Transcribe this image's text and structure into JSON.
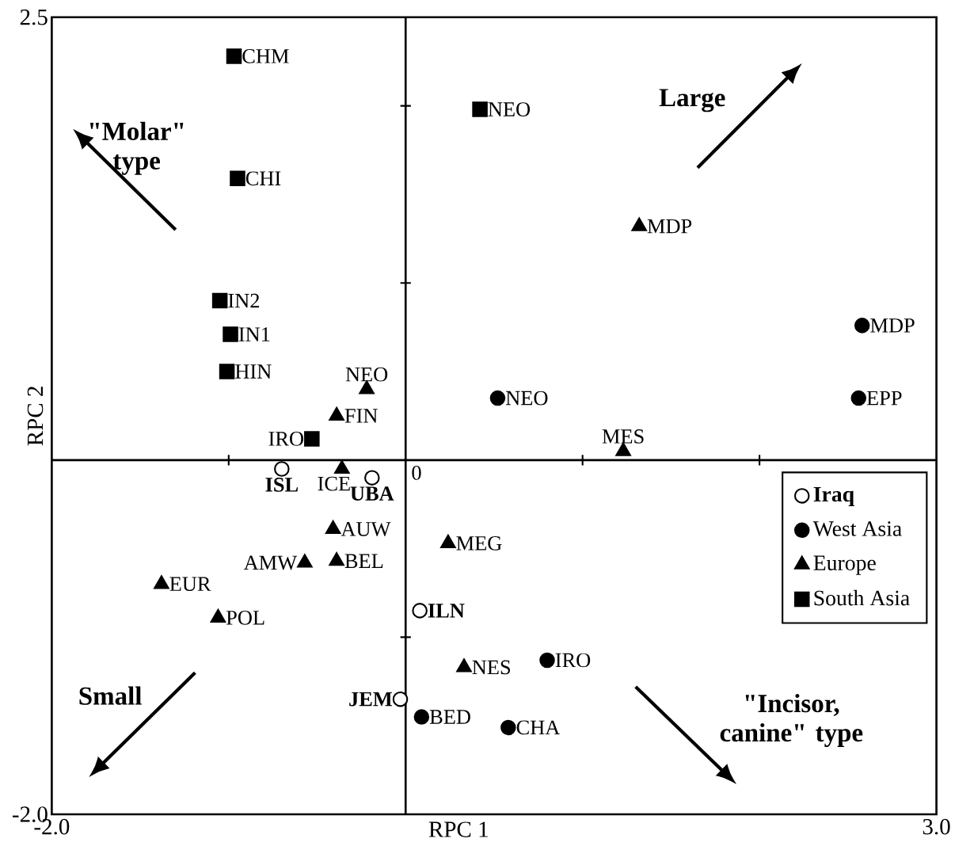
{
  "chart_data": {
    "type": "scatter",
    "xlabel": "RPC 1",
    "ylabel": "RPC 2",
    "xlim": [
      -2,
      3
    ],
    "ylim": [
      -2,
      2.5
    ],
    "xticks": [
      {
        "value": -2,
        "label": "-2.0"
      },
      {
        "value": -1,
        "label": null
      },
      {
        "value": 1,
        "label": null
      },
      {
        "value": 2,
        "label": null
      },
      {
        "value": 3,
        "label": "3.0"
      }
    ],
    "yticks": [
      {
        "value": -2,
        "label": "-2.0"
      },
      {
        "value": -1,
        "label": null
      },
      {
        "value": 1,
        "label": null
      },
      {
        "value": 2,
        "label": null
      },
      {
        "value": 2.5,
        "label": "2.5"
      }
    ],
    "legend": "right",
    "grid": false,
    "series": [
      {
        "name": "**Iraq**",
        "color": "#ffffff",
        "marker": "circle",
        "x": [
          -0.7,
          -0.19,
          0.08,
          -0.03
        ],
        "values": [
          -0.05,
          -0.1,
          -0.85,
          -1.35
        ]
      },
      {
        "name": "West Asia",
        "color": "#000000",
        "marker": "circle",
        "x": [
          2.58,
          0.52,
          2.56,
          0.8,
          0.09,
          0.58
        ],
        "values": [
          0.76,
          0.35,
          0.35,
          -1.13,
          -1.45,
          -1.51
        ]
      },
      {
        "name": "Europe",
        "color": "#000000",
        "marker": "triangle",
        "x": [
          1.32,
          -0.22,
          -0.39,
          1.23,
          -0.36,
          -0.41,
          -0.57,
          -0.39,
          0.24,
          -1.38,
          -1.06,
          0.33
        ],
        "values": [
          1.32,
          0.4,
          0.25,
          0.05,
          -0.05,
          -0.39,
          -0.58,
          -0.57,
          -0.47,
          -0.7,
          -0.89,
          -1.17
        ]
      },
      {
        "name": "South Asia",
        "color": "#000000",
        "marker": "square",
        "x": [
          -0.97,
          0.42,
          -0.95,
          -1.05,
          -0.99,
          -1.01,
          -0.53
        ],
        "values": [
          2.28,
          1.98,
          1.59,
          0.9,
          0.71,
          0.5,
          0.12
        ]
      }
    ],
    "annotations": [
      "Large",
      "\"Molar\" type",
      "Small",
      "\"Incisor, canine\" type",
      "0",
      {
        "text": "**ISL**",
        "x": -0.7,
        "y": -0.05
      },
      {
        "text": "**UBA**",
        "x": -0.19,
        "y": -0.1
      },
      {
        "text": "**ILN**",
        "x": 0.08,
        "y": -0.85
      },
      {
        "text": "**JEM**",
        "x": -0.03,
        "y": -1.35
      },
      {
        "text": "MDP",
        "x": 2.58,
        "y": 0.76
      },
      {
        "text": "NEO",
        "x": 0.52,
        "y": 0.35
      },
      {
        "text": "EPP",
        "x": 2.56,
        "y": 0.35
      },
      {
        "text": "IRO",
        "x": 0.8,
        "y": -1.13
      },
      {
        "text": "BED",
        "x": 0.09,
        "y": -1.45
      },
      {
        "text": "CHA",
        "x": 0.58,
        "y": -1.51
      },
      {
        "text": "MDP",
        "x": 1.32,
        "y": 1.32
      },
      {
        "text": "NEO",
        "x": -0.22,
        "y": 0.4
      },
      {
        "text": "FIN",
        "x": -0.39,
        "y": 0.25
      },
      {
        "text": "MES",
        "x": 1.23,
        "y": 0.05
      },
      {
        "text": "ICE",
        "x": -0.36,
        "y": -0.05
      },
      {
        "text": "AUW",
        "x": -0.41,
        "y": -0.39
      },
      {
        "text": "AMW",
        "x": -0.57,
        "y": -0.58
      },
      {
        "text": "BEL",
        "x": -0.39,
        "y": -0.57
      },
      {
        "text": "MEG",
        "x": 0.24,
        "y": -0.47
      },
      {
        "text": "EUR",
        "x": -1.38,
        "y": -0.7
      },
      {
        "text": "POL",
        "x": -1.06,
        "y": -0.89
      },
      {
        "text": "NES",
        "x": 0.33,
        "y": -1.17
      },
      {
        "text": "CHM",
        "x": -0.97,
        "y": 2.28
      },
      {
        "text": "NEO",
        "x": 0.42,
        "y": 1.98
      },
      {
        "text": "CHI",
        "x": -0.95,
        "y": 1.59
      },
      {
        "text": "IN2",
        "x": -1.05,
        "y": 0.9
      },
      {
        "text": "IN1",
        "x": -0.99,
        "y": 0.71
      },
      {
        "text": "HIN",
        "x": -1.01,
        "y": 0.5
      },
      {
        "text": "IRO",
        "x": -0.53,
        "y": 0.12
      }
    ]
  }
}
